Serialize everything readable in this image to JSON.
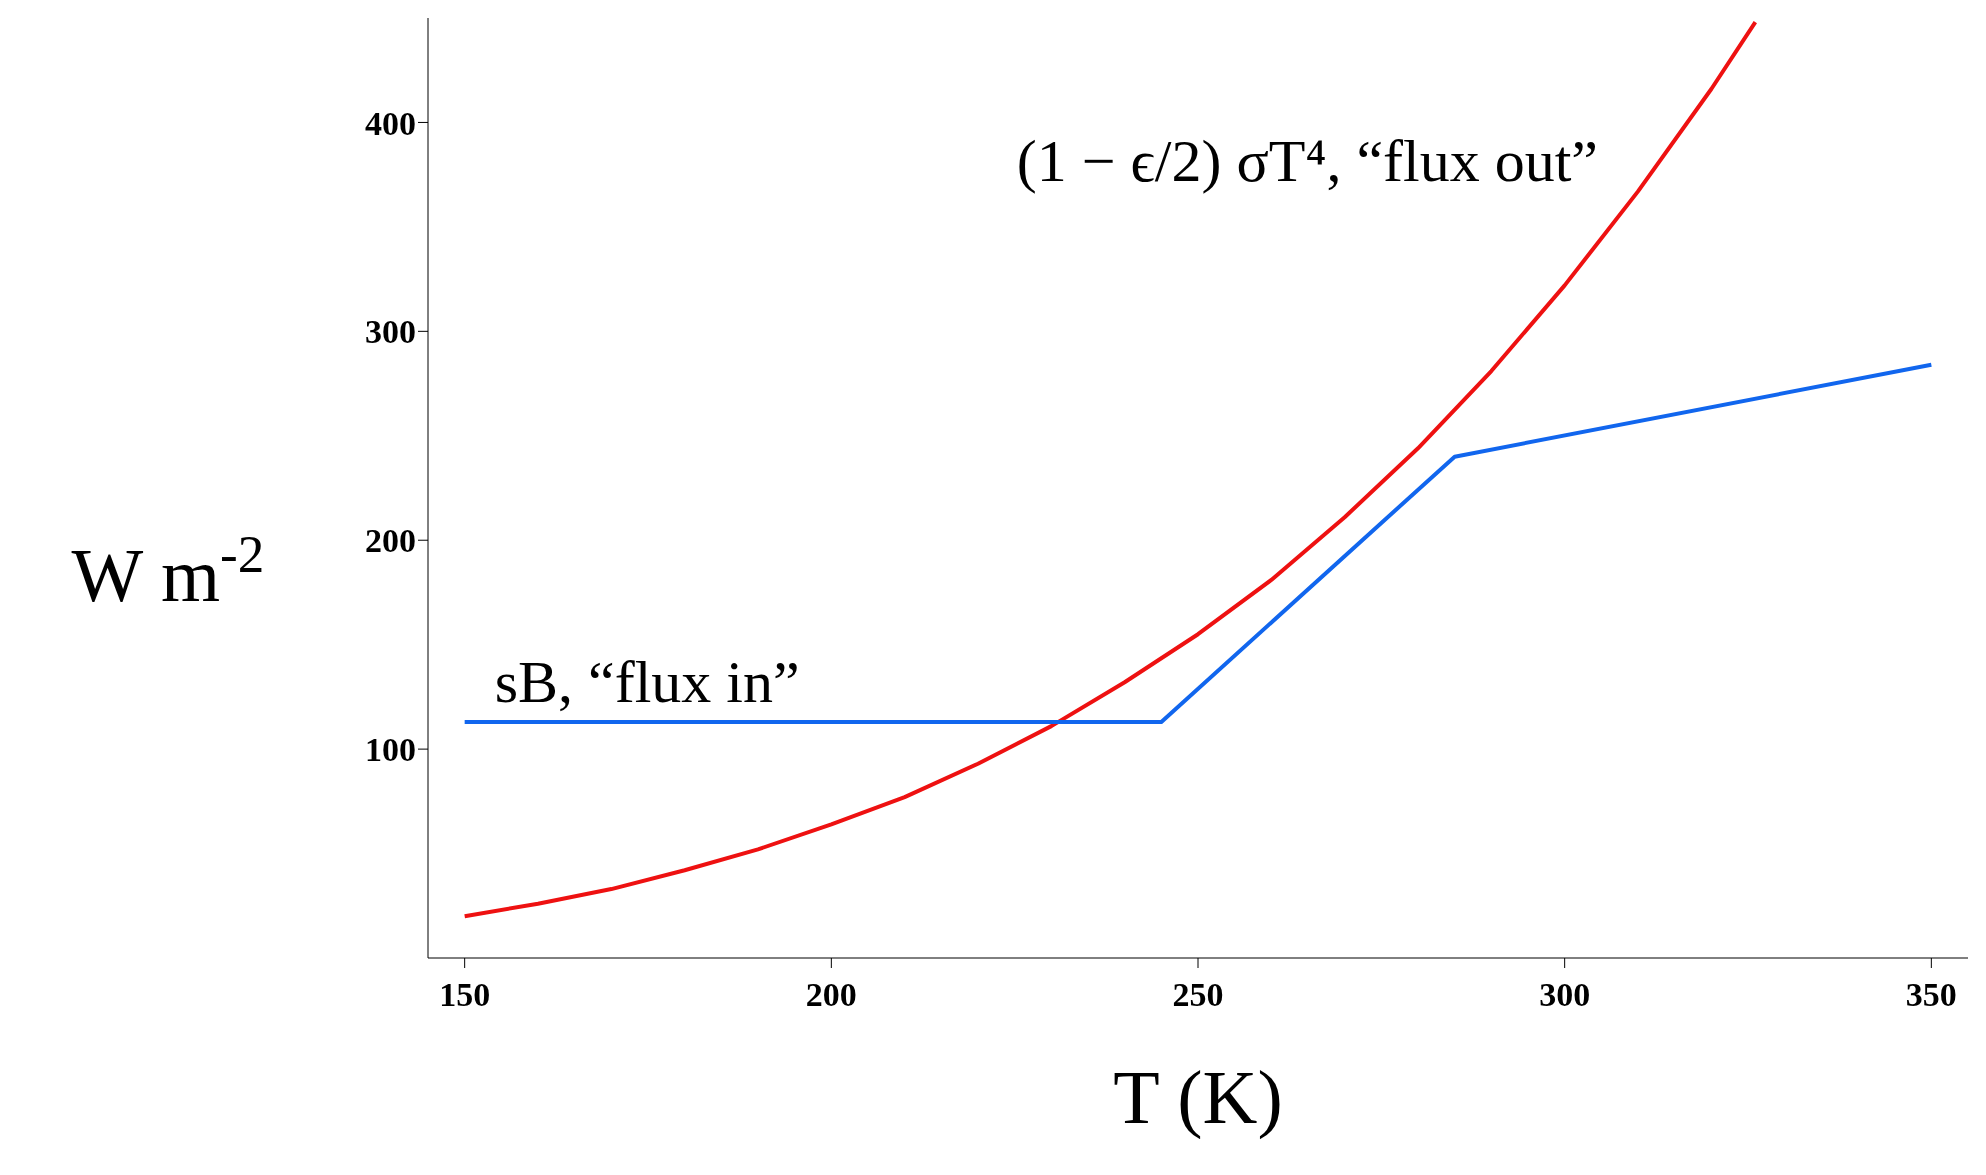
{
  "chart_data": {
    "type": "line",
    "xlabel": "T (K)",
    "ylabel": "W m$^{-2}$",
    "xlim": [
      145,
      355
    ],
    "ylim": [
      0,
      450
    ],
    "xticks": [
      150,
      200,
      250,
      300,
      350
    ],
    "yticks": [
      100,
      200,
      300,
      400
    ],
    "series": [
      {
        "name": "(1 − ϵ/2) σT⁴, “flux out”",
        "color": "#ee1111",
        "x": [
          150,
          160,
          170,
          180,
          190,
          200,
          210,
          220,
          230,
          240,
          250,
          260,
          270,
          280,
          290,
          300,
          310,
          320,
          326
        ],
        "values": [
          20,
          26,
          33,
          42,
          52,
          64,
          77,
          93,
          111,
          132,
          155,
          181,
          211,
          244,
          281,
          322,
          367,
          416,
          448
        ]
      },
      {
        "name": "sB, “flux in”",
        "color": "#1166ee",
        "x": [
          150,
          245,
          285,
          350
        ],
        "values": [
          113,
          113,
          240,
          284
        ]
      }
    ]
  }
}
